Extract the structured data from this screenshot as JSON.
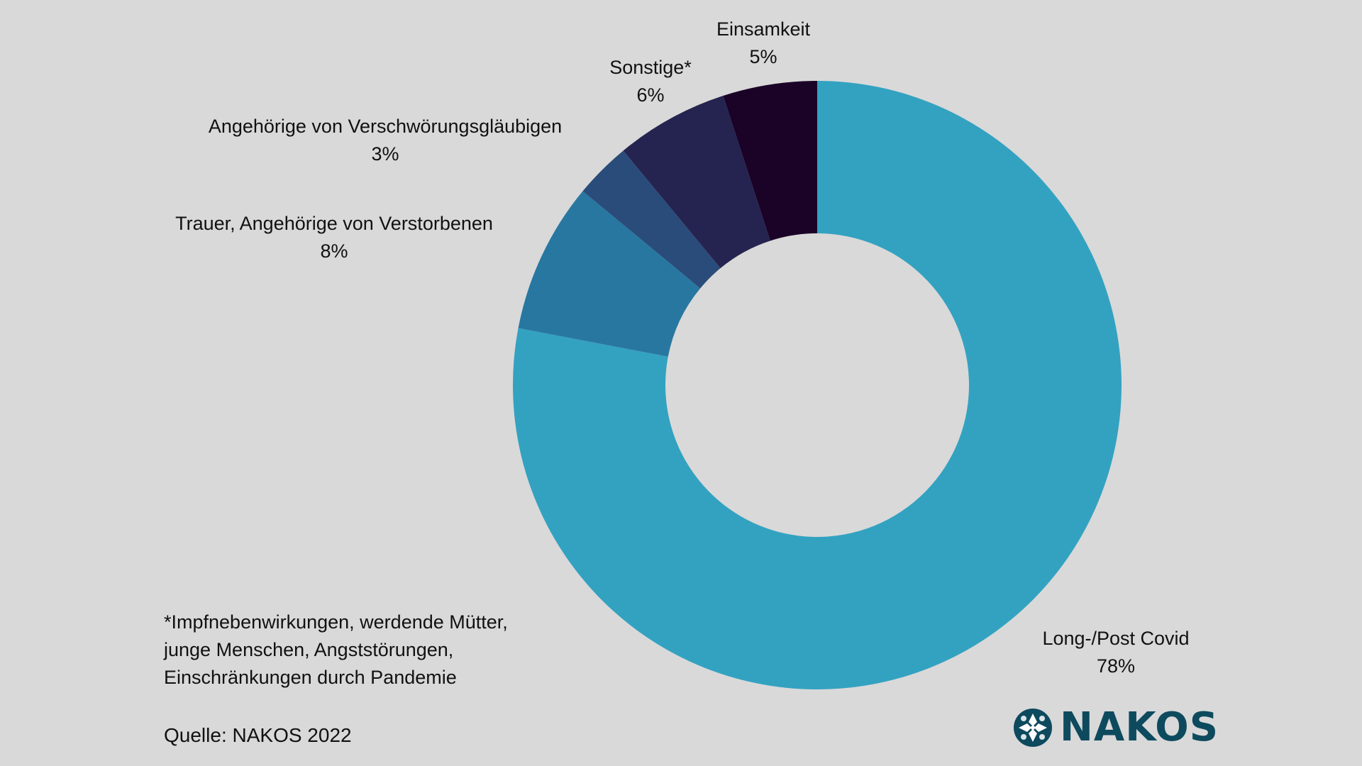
{
  "chart_data": {
    "type": "pie",
    "donut": true,
    "categories": [
      "Long-/Post Covid",
      "Trauer, Angehörige von Verstorbenen",
      "Angehörige von Verschwörungsgläubigen",
      "Sonstige*",
      "Einsamkeit"
    ],
    "values": [
      78,
      8,
      3,
      6,
      5
    ],
    "value_labels": [
      "78%",
      "8%",
      "3%",
      "6%",
      "5%"
    ],
    "colors": [
      "#33a2c1",
      "#2877a1",
      "#2a4c7a",
      "#252450",
      "#1b0227"
    ],
    "start": "12 o'clock",
    "direction": "clockwise",
    "legend": "none (direct labels)"
  },
  "footnote": {
    "lines": [
      "*Impfnebenwirkungen, werdende Mütter,",
      "junge Menschen, Angststörungen,",
      "Einschränkungen durch Pandemie"
    ]
  },
  "source": "Quelle: NAKOS 2022",
  "logo": {
    "text": "NAKOS",
    "color": "#0d4a5e",
    "icon": "nakos-logo-icon"
  },
  "background_color": "#d9d9d9"
}
